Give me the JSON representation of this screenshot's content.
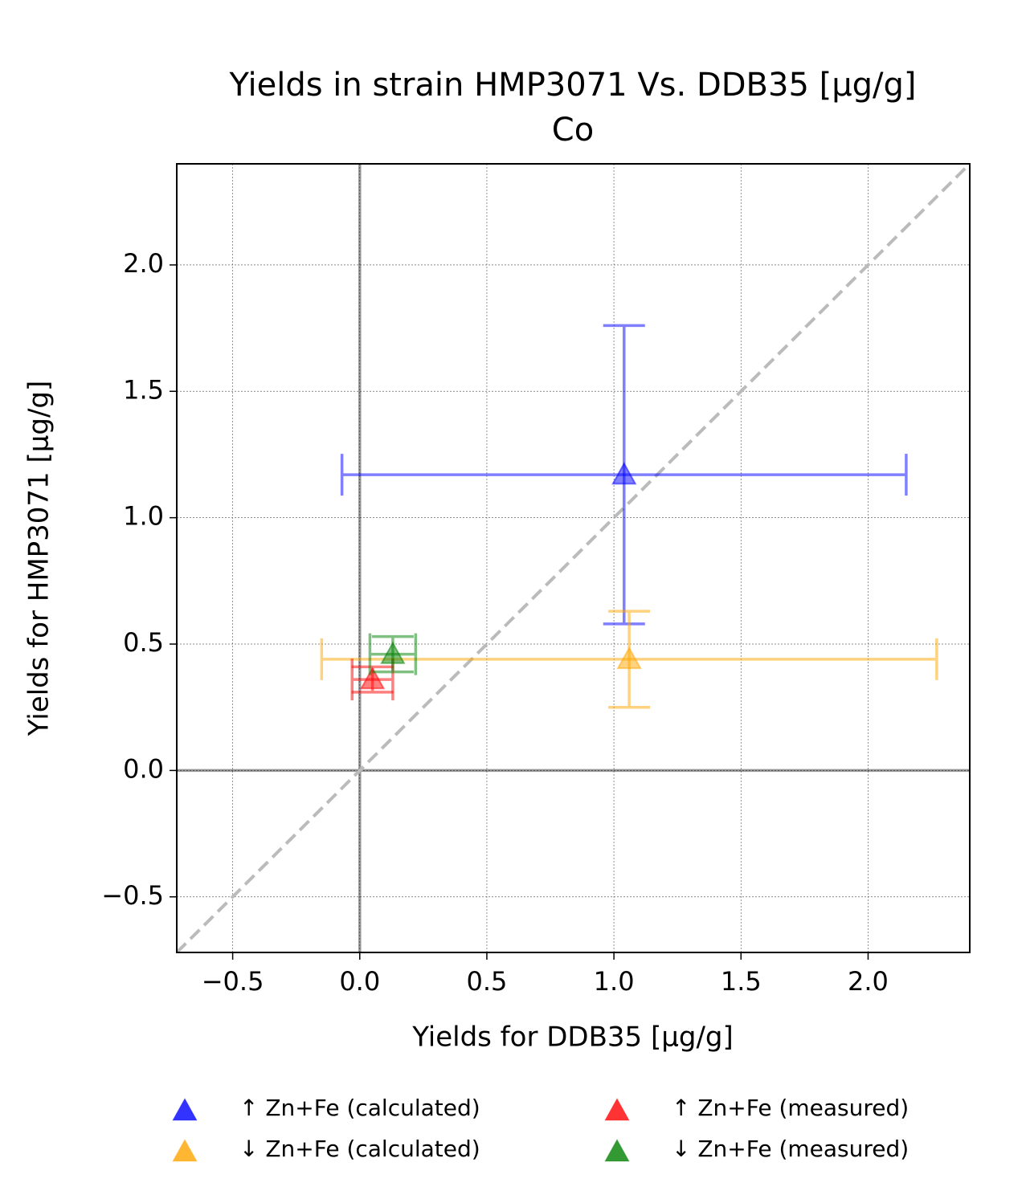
{
  "chart_data": {
    "type": "scatter",
    "title": "Yields in strain HMP3071 Vs. DDB35 [µg/g]",
    "subtitle": "Co",
    "x_label": "Yields for DDB35 [µg/g]",
    "y_label": "Yields for HMP3071 [µg/g]",
    "xlim": [
      -0.72,
      2.4
    ],
    "ylim": [
      -0.72,
      2.4
    ],
    "xticks": [
      {
        "value": -0.5,
        "label": "−0.5"
      },
      {
        "value": 0,
        "label": "0.0"
      },
      0.5,
      {
        "value": 1,
        "label": "1.0"
      },
      1.5,
      {
        "value": 2,
        "label": "2.0"
      }
    ],
    "yticks": [
      {
        "value": -0.5,
        "label": "−0.5"
      },
      {
        "value": 0,
        "label": "0.0"
      },
      0.5,
      {
        "value": 1,
        "label": "1.0"
      },
      1.5,
      {
        "value": 2,
        "label": "2.0"
      }
    ],
    "grid": true,
    "diagonal": true,
    "zero_lines": true,
    "legend": "bottom",
    "series": [
      {
        "name": "↑ Zn+Fe (calculated)",
        "color": "blue",
        "x": [
          1.04
        ],
        "y": [
          1.17
        ],
        "xerr": [
          1.11
        ],
        "yerr": [
          0.59
        ]
      },
      {
        "name": "↓ Zn+Fe (calculated)",
        "color": "orange",
        "x": [
          1.06
        ],
        "y": [
          0.44
        ],
        "xerr": [
          1.21
        ],
        "yerr": [
          0.19
        ]
      },
      {
        "name": "↑ Zn+Fe (measured)",
        "color": "red",
        "x": [
          0.05
        ],
        "y": [
          0.36
        ],
        "xerr": [
          0.08
        ],
        "yerr": [
          0.05
        ]
      },
      {
        "name": "↓ Zn+Fe (measured)",
        "color": "green",
        "x": [
          0.13
        ],
        "y": [
          0.46
        ],
        "xerr": [
          0.09
        ],
        "yerr": [
          0.07
        ]
      }
    ]
  }
}
